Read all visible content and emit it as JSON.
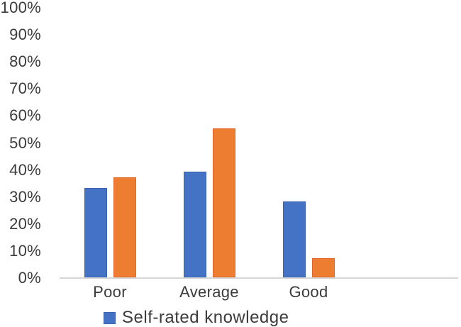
{
  "chart_data": {
    "type": "bar",
    "title": "",
    "xlabel": "",
    "ylabel": "",
    "categories": [
      "Poor",
      "Average",
      "Good"
    ],
    "series": [
      {
        "name": "Self-rated knowledge",
        "color": "#4472C4",
        "border_color": "#3A62AE",
        "values": [
          33,
          39,
          28
        ]
      },
      {
        "name": "",
        "color": "#ED7D31",
        "border_color": "#E2662A",
        "values": [
          37,
          55,
          7
        ]
      }
    ],
    "ylim": [
      0,
      100
    ],
    "ytick_values": [
      0,
      10,
      20,
      30,
      40,
      50,
      60,
      70,
      80,
      90,
      100
    ],
    "ytick_labels": [
      "0%",
      "10%",
      "20%",
      "30%",
      "40%",
      "50%",
      "60%",
      "70%",
      "80%",
      "90%",
      "100%"
    ],
    "grid": false,
    "legend_position": "bottom",
    "legend_entries": [
      {
        "label": "Self-rated knowledge",
        "color": "#4472C4",
        "border_color": "#3A62AE"
      }
    ]
  },
  "colors": {
    "background": "#FFFFFF",
    "axis_line": "#D6D6D6",
    "text": "#3B3B3B"
  }
}
